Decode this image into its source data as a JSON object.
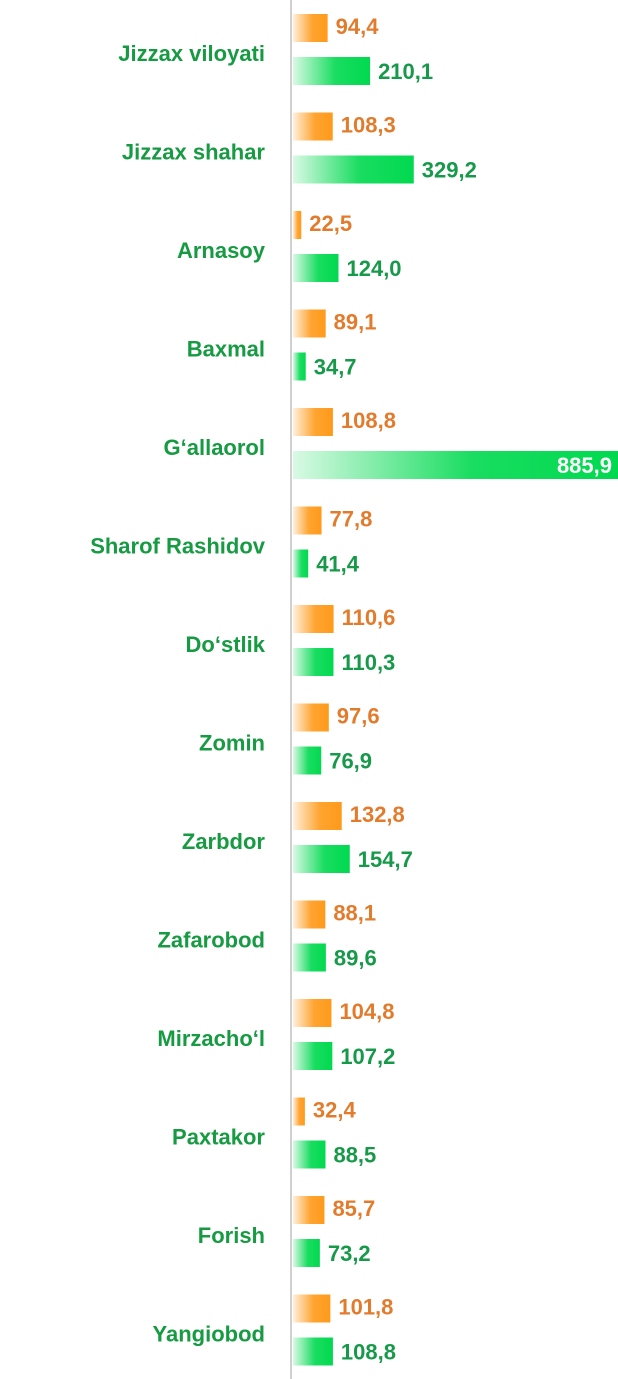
{
  "chart_data": {
    "type": "bar",
    "orientation": "horizontal",
    "categories": [
      "Jizzax viloyati",
      "Jizzax shahar",
      "Arnasoy",
      "Baxmal",
      "G‘allaorol",
      "Sharof Rashidov",
      "Do‘stlik",
      "Zomin",
      "Zarbdor",
      "Zafarobod",
      "Mirzacho‘l",
      "Paxtakor",
      "Forish",
      "Yangiobod"
    ],
    "series": [
      {
        "color": "#ff9a1a",
        "label_color": "#e27b2c",
        "values": [
          94.4,
          108.3,
          22.5,
          89.1,
          108.8,
          77.8,
          110.6,
          97.6,
          132.8,
          88.1,
          104.8,
          32.4,
          85.7,
          101.8
        ],
        "value_labels": [
          "94,4",
          "108,3",
          "22,5",
          "89,1",
          "108,8",
          "77,8",
          "110,6",
          "97,6",
          "132,8",
          "88,1",
          "104,8",
          "32,4",
          "85,7",
          "101,8"
        ]
      },
      {
        "color": "#00d94f",
        "label_color": "#17994a",
        "values": [
          210.1,
          329.2,
          124.0,
          34.7,
          885.9,
          41.4,
          110.3,
          76.9,
          154.7,
          89.6,
          107.2,
          88.5,
          73.2,
          108.8
        ],
        "value_labels": [
          "210,1",
          "329,2",
          "124,0",
          "34,7",
          "885,9",
          "41,4",
          "110,3",
          "76,9",
          "154,7",
          "89,6",
          "107,2",
          "88,5",
          "73,2",
          "108,8"
        ]
      }
    ],
    "xlim": [
      0,
      885.9
    ],
    "category_color": "#169a42"
  }
}
